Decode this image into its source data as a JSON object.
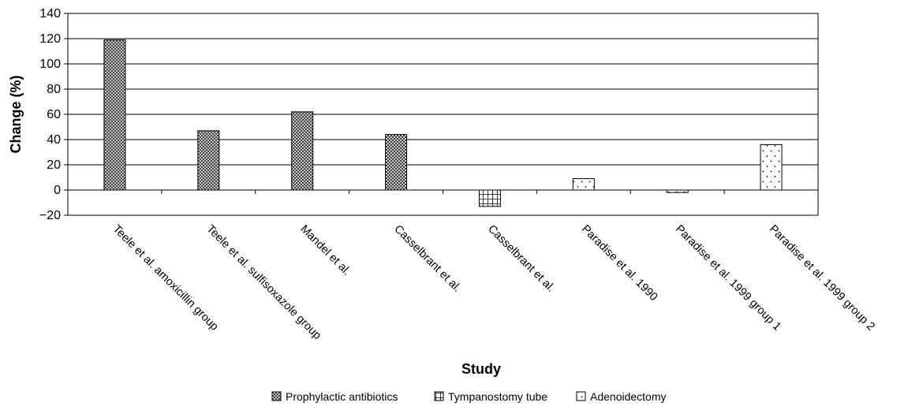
{
  "chart_data": {
    "type": "bar",
    "xlabel": "Study",
    "ylabel": "Change (%)",
    "ylim": [
      -20,
      140
    ],
    "yticks": [
      -20,
      0,
      20,
      40,
      60,
      80,
      100,
      120,
      140
    ],
    "ytick_labels": [
      "−20",
      "0",
      "20",
      "40",
      "60",
      "80",
      "100",
      "120",
      "140"
    ],
    "grid": true,
    "legend_position": "bottom",
    "categories": [
      "Teele et al. amoxicillin group",
      "Teele et al. sulfisoxazole group",
      "Mandel et al.",
      "Casselbrant et al.",
      "Casselbrant et al.",
      "Paradise et al. 1990",
      "Paradise et al. 1999 group 1",
      "Paradise et al. 1999 group 2"
    ],
    "values": [
      119,
      47,
      62,
      44,
      -13,
      9,
      -2,
      36
    ],
    "groups": [
      "Prophylactic antibiotics",
      "Prophylactic antibiotics",
      "Prophylactic antibiotics",
      "Prophylactic antibiotics",
      "Tympanostomy tube",
      "Adenoidectomy",
      "Adenoidectomy",
      "Adenoidectomy"
    ],
    "series": [
      {
        "name": "Prophylactic antibiotics",
        "pattern": "crosshatch"
      },
      {
        "name": "Tympanostomy tube",
        "pattern": "grid"
      },
      {
        "name": "Adenoidectomy",
        "pattern": "dots"
      }
    ]
  }
}
